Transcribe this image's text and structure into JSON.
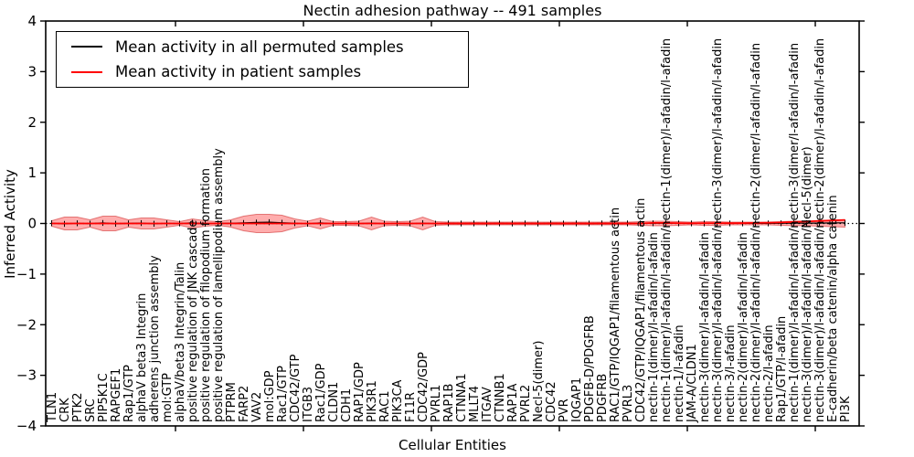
{
  "title": "Nectin adhesion pathway -- 491 samples",
  "axes": {
    "ylabel": "Inferred Activity",
    "xlabel": "Cellular Entities",
    "ytick_labels": [
      "4",
      "3",
      "2",
      "1",
      "0",
      "−1",
      "−2",
      "−3",
      "−4"
    ],
    "ytick_values": [
      4,
      3,
      2,
      1,
      0,
      -1,
      -2,
      -3,
      -4
    ]
  },
  "legend": {
    "items": [
      {
        "label": "Mean activity in all permuted samples",
        "color": "#000000"
      },
      {
        "label": "Mean activity in patient samples",
        "color": "#ff0000"
      }
    ]
  },
  "colors": {
    "permuted_line": "#000000",
    "patient_line": "#ff0000",
    "band_fill": "#ff0000",
    "band_edge": "#cc2222",
    "zero_line": "#000000",
    "frame": "#000000"
  },
  "chart_data": {
    "type": "line",
    "title": "Nectin adhesion pathway -- 491 samples",
    "xlabel": "Cellular Entities",
    "ylabel": "Inferred Activity",
    "ylim": [
      -4,
      4
    ],
    "grid": false,
    "legend_position": "upper left",
    "categories": [
      "TLN1",
      "CRK",
      "PTK2",
      "SRC",
      "PIP5K1C",
      "RAPGEF1",
      "Rap1/GTP",
      "alphaV beta3 Integrin",
      "adherens junction assembly",
      "mol:GTP",
      "alphaV/beta3 Integrin/Talin",
      "positive regulation of JNK cascade",
      "positive regulation of filopodium formation",
      "positive regulation of lamellipodium assembly",
      "PTPRM",
      "FARP2",
      "VAV2",
      "mol:GDP",
      "Rac1/GTP",
      "CDC42/GTP",
      "ITGB3",
      "Rac1/GDP",
      "CLDN1",
      "CDH1",
      "RAP1/GDP",
      "PIK3R1",
      "RAC1",
      "PIK3CA",
      "F11R",
      "CDC42/GDP",
      "PVRL1",
      "RAP1B",
      "CTNNA1",
      "MLLT4",
      "ITGAV",
      "CTNNB1",
      "RAP1A",
      "PVRL2",
      "Necl-5(dimer)",
      "CDC42",
      "PVR",
      "IQGAP1",
      "PDGFB-D/PDGFRB",
      "PDGFRB",
      "RAC1/GTP/IQGAP1/filamentous actin",
      "PVRL3",
      "CDC42/GTP/IQGAP1/filamentous actin",
      "nectin-1(dimer)/l-afadin/l-afadin",
      "nectin-1(dimer)/l-afadin/l-afadin/nectin-1(dimer)/l-afadin/l-afadin",
      "nectin-1/l-afadin",
      "JAM-A/CLDN1",
      "nectin-3(dimer)/l-afadin/l-afadin",
      "nectin-3(dimer)/l-afadin/l-afadin/nectin-3(dimer)/l-afadin/l-afadin",
      "nectin-3/l-afadin",
      "nectin-2(dimer)/l-afadin/l-afadin",
      "nectin-2(dimer)/l-afadin/l-afadin/nectin-2(dimer/l-afadin/l-afadin",
      "nectin-2/l-afadin",
      "Rap1/GTP/l-afadin",
      "nectin-1(dimer)/l-afadin/l-afadin/nectin-3(dimer/l-afadin/l-afadin",
      "nectin-3(dimer)/l-afadin/l-afadin/Necl-5(dimer)",
      "nectin-3(dimer)/l-afadin/l-afadin/nectin-2(dimer)/l-afadin/l-afadin",
      "E-cadherin/beta catenin/alpha catenin",
      "PI3K"
    ],
    "series": [
      {
        "name": "Mean activity in all permuted samples",
        "color": "#000000",
        "values": [
          0.005,
          -0.008,
          0.004,
          -0.003,
          0.01,
          -0.006,
          0.002,
          0.008,
          -0.005,
          0.003,
          -0.002,
          0.015,
          -0.004,
          0.002,
          0.005,
          0.01,
          0.02,
          0.025,
          0.015,
          0.005,
          -0.005,
          0.01,
          -0.003,
          0.002,
          -0.002,
          0.008,
          -0.004,
          0.002,
          -0.002,
          0.006,
          -0.003,
          0.001,
          -0.001,
          0.002,
          -0.002,
          0.001,
          -0.001,
          0.002,
          -0.001,
          0.001,
          -0.001,
          0.001,
          -0.002,
          0.001,
          -0.001,
          0.001,
          0.002,
          0.004,
          0.003,
          0.002,
          0.001,
          0.002,
          0.003,
          0.001,
          0.001,
          0.002,
          0.002,
          0.003,
          0.005,
          0.006,
          0.008,
          0.01,
          0.012
        ]
      },
      {
        "name": "Mean activity in patient samples",
        "color": "#ff0000",
        "values": [
          0,
          0,
          0,
          0,
          0,
          0,
          0,
          0,
          0,
          0,
          0,
          0,
          0,
          0,
          0,
          0,
          0,
          0,
          0,
          0,
          0,
          0,
          0,
          0,
          0,
          0,
          0,
          0,
          0,
          0,
          0,
          0,
          0,
          0,
          0,
          0,
          0,
          0,
          0,
          0,
          0,
          0,
          0,
          0,
          0,
          0,
          0,
          0.01,
          0.01,
          0.005,
          0.003,
          0.005,
          0.008,
          0.005,
          0.008,
          0.01,
          0.015,
          0.02,
          0.03,
          0.04,
          0.05,
          0.06,
          0.07
        ]
      }
    ],
    "band": {
      "name": "spread of permuted sample activity",
      "color": "#ff0000",
      "opacity": 0.32,
      "half_widths": [
        0.054,
        0.127,
        0.127,
        0.072,
        0.145,
        0.145,
        0.072,
        0.109,
        0.109,
        0.072,
        0.036,
        0.09,
        0.054,
        0.036,
        0.072,
        0.145,
        0.181,
        0.181,
        0.163,
        0.09,
        0.045,
        0.109,
        0.036,
        0.036,
        0.045,
        0.127,
        0.045,
        0.036,
        0.045,
        0.127,
        0.036,
        0.027,
        0.027,
        0.027,
        0.027,
        0.027,
        0.027,
        0.027,
        0.027,
        0.027,
        0.027,
        0.027,
        0.027,
        0.027,
        0.027,
        0.027,
        0.036,
        0.045,
        0.045,
        0.036,
        0.027,
        0.036,
        0.036,
        0.027,
        0.027,
        0.027,
        0.027,
        0.036,
        0.045,
        0.045,
        0.054,
        0.063,
        0.072
      ]
    },
    "zero_line": {
      "style": "dotted",
      "color": "#000000",
      "y": 0
    },
    "xticks_sparse": [
      192,
      332,
      472,
      612,
      752,
      892
    ]
  }
}
